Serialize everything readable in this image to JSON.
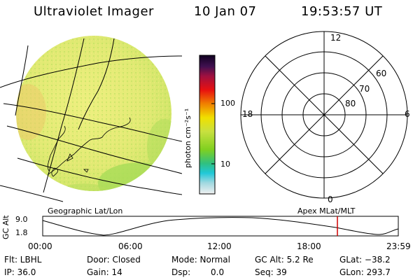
{
  "header": {
    "instrument": "Ultraviolet Imager",
    "date": "10 Jan 07",
    "time": "19:53:57 UT"
  },
  "colorbar": {
    "unit_label": "photon cm⁻²s⁻¹",
    "ticks": [
      "100",
      "10"
    ]
  },
  "polar_plot": {
    "mlt_labels": [
      "12",
      "18",
      "6",
      "0"
    ],
    "lat_labels": [
      "60",
      "70",
      "80"
    ]
  },
  "timeline": {
    "left_label": "Geographic Lat/Lon",
    "right_label": "Apex MLat/MLT",
    "axis_label": "GC Alt",
    "y_ticks": [
      "9.0",
      "1.8"
    ],
    "x_ticks": [
      "00:00",
      "06:00",
      "12:00",
      "18:00",
      "23:59"
    ],
    "marker_color": "#d00000"
  },
  "status": {
    "filter": "Flt: LBHL",
    "ip": "IP: 36.0",
    "door": "Door: Closed",
    "gain": "Gain: 14",
    "mode": "Mode: Normal",
    "dsp_label": "Dsp:",
    "dsp_value": "0.0",
    "gc_alt": "GC Alt: 5.2 Re",
    "seq": "Seq: 39",
    "glat": "GLat: −38.2",
    "glon": "GLon: 293.7"
  },
  "colors": {
    "disk_base": "#e2ea74",
    "disk_green": "#a8dc58",
    "disk_orange": "#ecca6a"
  }
}
